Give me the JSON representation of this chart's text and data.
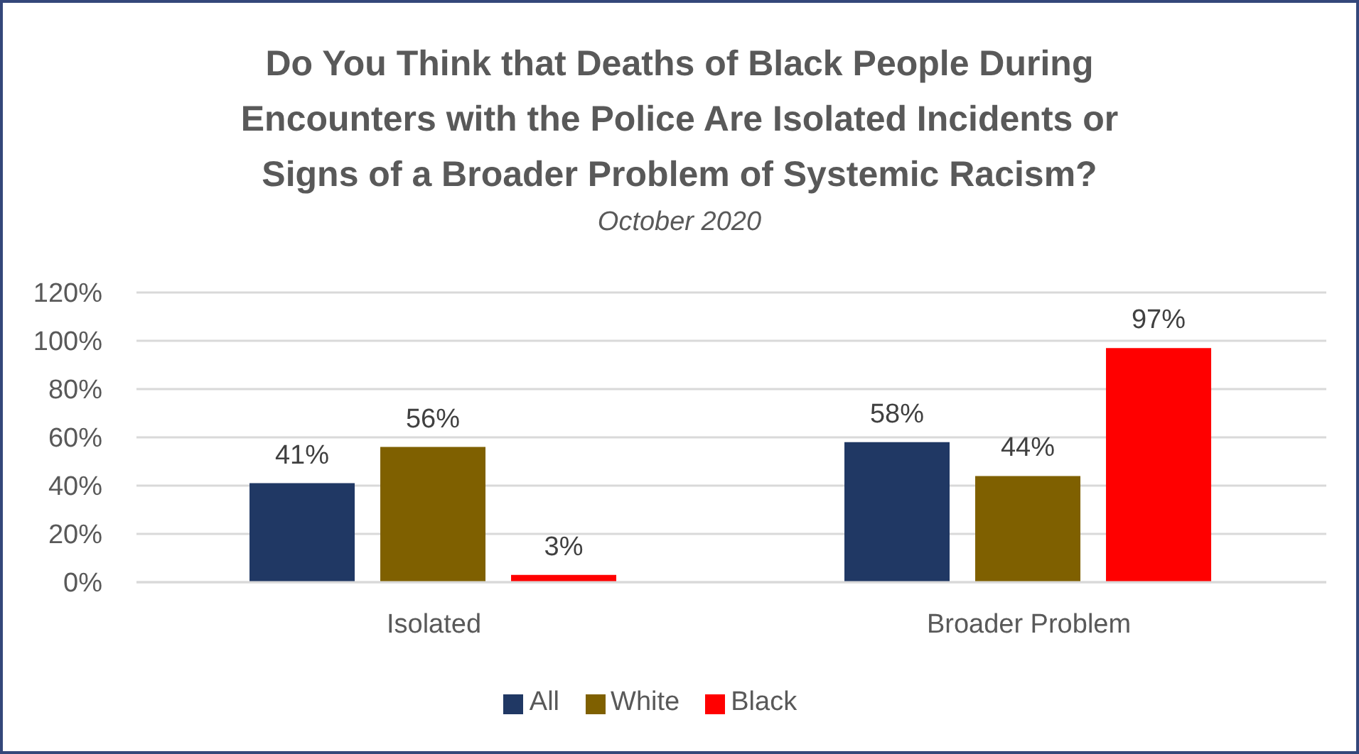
{
  "chart_data": {
    "type": "bar",
    "title": "Do You Think that Deaths of Black People During Encounters with the Police Are Isolated Incidents or Signs of a Broader Problem of Systemic Racism?",
    "subtitle": "October 2020",
    "categories": [
      "Isolated",
      "Broader Problem"
    ],
    "series": [
      {
        "name": "All",
        "color": "#203864",
        "values": [
          41,
          58
        ],
        "value_labels": [
          "41%",
          "58%"
        ]
      },
      {
        "name": "White",
        "color": "#7f6000",
        "values": [
          56,
          44
        ],
        "value_labels": [
          "56%",
          "44%"
        ]
      },
      {
        "name": "Black",
        "color": "#ff0000",
        "values": [
          3,
          97
        ],
        "value_labels": [
          "3%",
          "97%"
        ]
      }
    ],
    "ylim": [
      0,
      120
    ],
    "yticks": [
      {
        "value": 0,
        "label": "0%"
      },
      {
        "value": 20,
        "label": "20%"
      },
      {
        "value": 40,
        "label": "40%"
      },
      {
        "value": 60,
        "label": "60%"
      },
      {
        "value": 80,
        "label": "80%"
      },
      {
        "value": 100,
        "label": "100%"
      },
      {
        "value": 120,
        "label": "120%"
      }
    ],
    "grid": "y",
    "legend": "bottom"
  }
}
